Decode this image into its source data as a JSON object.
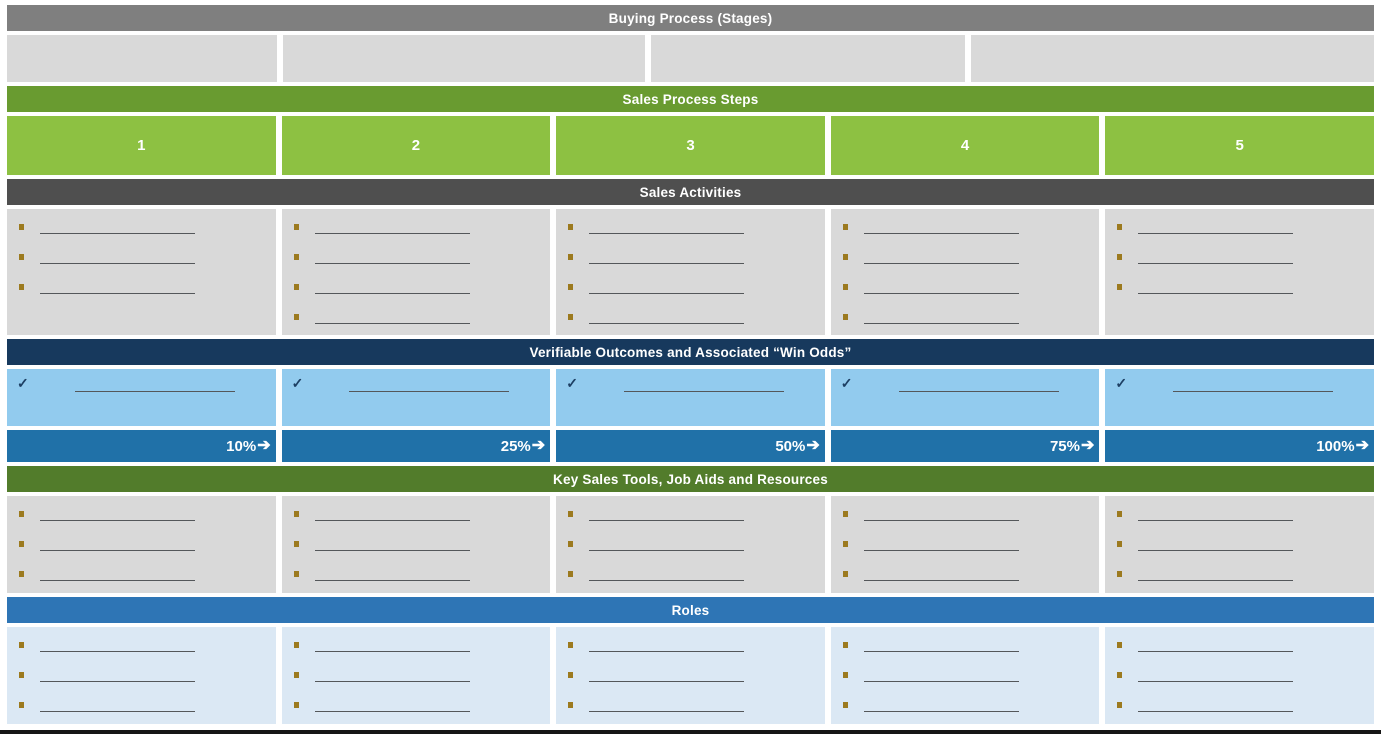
{
  "template": {
    "headers": {
      "buying_process": "Buying Process (Stages)",
      "sales_process_steps": "Sales Process Steps",
      "sales_activities": "Sales Activities",
      "verifiable_outcomes": "Verifiable Outcomes and Associated “Win Odds”",
      "key_sales_tools": "Key Sales Tools, Job Aids and Resources",
      "roles": "Roles"
    },
    "steps": [
      "1",
      "2",
      "3",
      "4",
      "5"
    ],
    "win_odds": [
      "10%",
      "25%",
      "50%",
      "75%",
      "100%"
    ],
    "arrow": "➔",
    "check_mark": "✓",
    "buying_stage_cell_count": 4,
    "bullet_counts": {
      "sales_activities": [
        3,
        4,
        4,
        4,
        3
      ],
      "key_sales_tools": [
        3,
        3,
        3,
        3,
        3
      ],
      "roles": [
        3,
        3,
        3,
        3,
        3
      ]
    },
    "colors": {
      "buying_header_bg": "#7f7f7f",
      "stage_cell_bg": "#d9d9d9",
      "steps_header_bg": "#699b30",
      "step_cell_bg": "#8dc142",
      "activities_header_bg": "#4f4f4f",
      "outcomes_header_bg": "#17395d",
      "outcome_cell_bg": "#92cbee",
      "win_odds_bg": "#2071a8",
      "tools_header_bg": "#527c2b",
      "roles_header_bg": "#2e75b5",
      "roles_cell_bg": "#dbe8f4",
      "bullet": "#9c7a1f"
    }
  }
}
